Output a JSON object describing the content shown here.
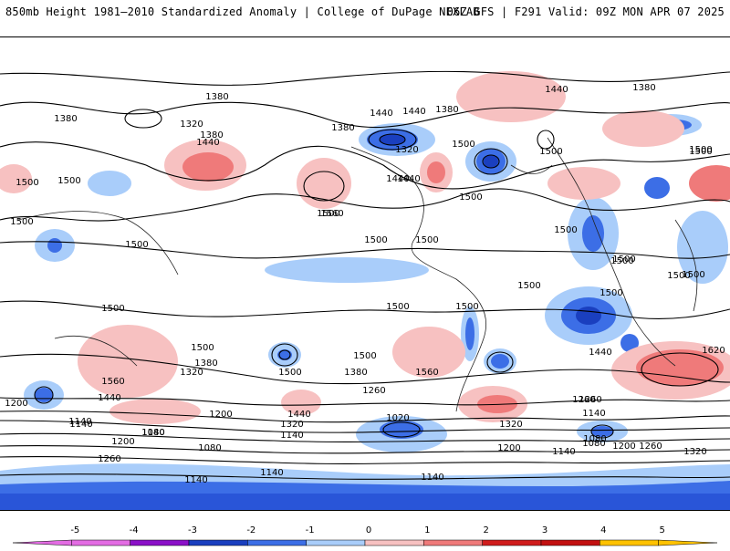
{
  "header": {
    "title_left": "850mb Height 1981–2010 Standardized Anomaly | College of DuPage NEXLAB",
    "title_right": "06Z GFS | F291 Valid: 09Z MON APR 07 2025"
  },
  "colorbar": {
    "ticks": [
      "-5",
      "-4",
      "-3",
      "-2",
      "-1",
      "0",
      "1",
      "2",
      "3",
      "4",
      "5"
    ],
    "colors": [
      "#e36ce3",
      "#8b10c8",
      "#1a3fbf",
      "#3c6ee6",
      "#a9cdfa",
      "#ffffff",
      "#f7c1c1",
      "#ef7a7a",
      "#d01c1c",
      "#c21010",
      "#ffc200"
    ]
  },
  "contour_labels": [
    "1380",
    "1380",
    "1380",
    "1440",
    "1320",
    "1380",
    "1440",
    "1440",
    "1440",
    "1380",
    "1500",
    "1500",
    "1500",
    "1380",
    "1320",
    "1440",
    "1500",
    "1560",
    "1440",
    "1500",
    "1500",
    "1500",
    "1500",
    "1500",
    "1500",
    "1500",
    "1500",
    "1500",
    "1500",
    "1500",
    "1500",
    "1500",
    "1500",
    "1500",
    "1500",
    "1500",
    "1560",
    "1440",
    "1320",
    "1380",
    "1500",
    "1500",
    "1500",
    "1380",
    "1260",
    "1560",
    "1620",
    "1440",
    "1500",
    "1260",
    "1200",
    "1440",
    "1320",
    "1140",
    "1080",
    "1020",
    "1260",
    "1140",
    "1080",
    "1200",
    "1140",
    "1080",
    "1140",
    "1260",
    "1200",
    "1140",
    "1320",
    "1200",
    "1080",
    "1140",
    "1140",
    "1200",
    "1260",
    "1320",
    "1140",
    "1140"
  ]
}
